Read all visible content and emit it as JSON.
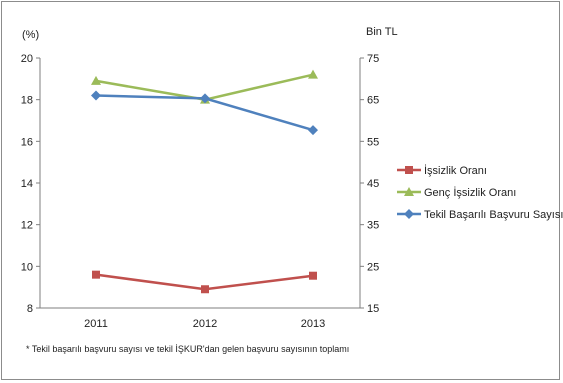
{
  "chart_data": {
    "type": "line",
    "categories": [
      "2011",
      "2012",
      "2013"
    ],
    "left_axis": {
      "label": "(%)",
      "min": 8,
      "max": 20,
      "step": 2,
      "ticks": [
        "8",
        "10",
        "12",
        "14",
        "16",
        "18",
        "20"
      ]
    },
    "right_axis": {
      "label": "Bin TL",
      "min": 15,
      "max": 75,
      "step": 10,
      "ticks": [
        "15",
        "25",
        "35",
        "45",
        "55",
        "65",
        "75"
      ]
    },
    "series": [
      {
        "name": "İşsizlik Oranı",
        "axis": "left",
        "values": [
          9.6,
          8.9,
          9.55
        ],
        "color": "#c0504d",
        "marker": "square"
      },
      {
        "name": "Genç İşsizlik Oranı",
        "axis": "left",
        "values": [
          18.9,
          18.0,
          19.2
        ],
        "color": "#9bbb59",
        "marker": "triangle"
      },
      {
        "name": "Tekil Başarılı Başvuru Sayısı*",
        "axis": "right",
        "values": [
          66.0,
          65.3,
          57.7
        ],
        "color": "#4f81bd",
        "marker": "diamond"
      }
    ],
    "legend_position": "right",
    "footnote": "* Tekil başarılı  başvuru sayısı ve  tekil İŞKUR'dan gelen başvuru sayısının toplamı",
    "grid": false
  }
}
